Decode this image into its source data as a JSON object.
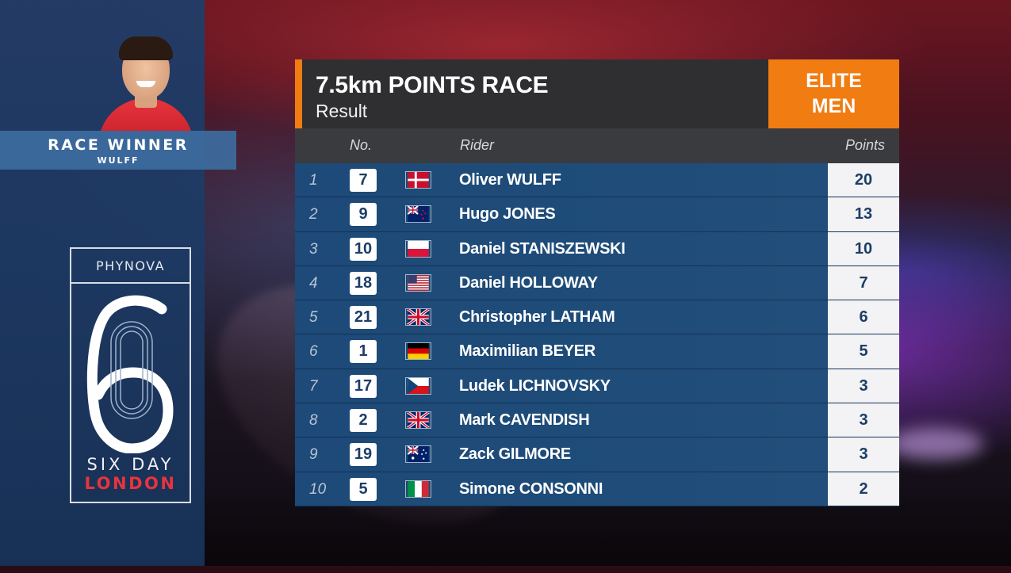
{
  "winner": {
    "title": "RACE WINNER",
    "name": "WULFF"
  },
  "event_logo": {
    "sponsor": "PHYNOVA",
    "numeral": "6",
    "line1": "SIX DAY",
    "line2": "LONDON"
  },
  "race": {
    "title": "7.5km POINTS RACE",
    "subtitle": "Result",
    "category_line1": "ELITE",
    "category_line2": "MEN"
  },
  "columns": {
    "number": "No.",
    "rider": "Rider",
    "points": "Points"
  },
  "results": [
    {
      "pos": "1",
      "no": "7",
      "flag": "DEN",
      "rider": "Oliver WULFF",
      "points": "20"
    },
    {
      "pos": "2",
      "no": "9",
      "flag": "NZL",
      "rider": "Hugo JONES",
      "points": "13"
    },
    {
      "pos": "3",
      "no": "10",
      "flag": "POL",
      "rider": "Daniel STANISZEWSKI",
      "points": "10"
    },
    {
      "pos": "4",
      "no": "18",
      "flag": "USA",
      "rider": "Daniel HOLLOWAY",
      "points": "7"
    },
    {
      "pos": "5",
      "no": "21",
      "flag": "GBR",
      "rider": "Christopher LATHAM",
      "points": "6"
    },
    {
      "pos": "6",
      "no": "1",
      "flag": "GER",
      "rider": "Maximilian BEYER",
      "points": "5"
    },
    {
      "pos": "7",
      "no": "17",
      "flag": "CZE",
      "rider": "Ludek LICHNOVSKY",
      "points": "3"
    },
    {
      "pos": "8",
      "no": "2",
      "flag": "GBR",
      "rider": "Mark CAVENDISH",
      "points": "3"
    },
    {
      "pos": "9",
      "no": "19",
      "flag": "AUS",
      "rider": "Zack GILMORE",
      "points": "3"
    },
    {
      "pos": "10",
      "no": "5",
      "flag": "ITA",
      "rider": "Simone CONSONNI",
      "points": "2"
    }
  ],
  "colors": {
    "accent_orange": "#f07c12",
    "row_blue": "#1f4c79",
    "sidebar_blue": "#1e3e6a",
    "london_red": "#e7343c"
  }
}
